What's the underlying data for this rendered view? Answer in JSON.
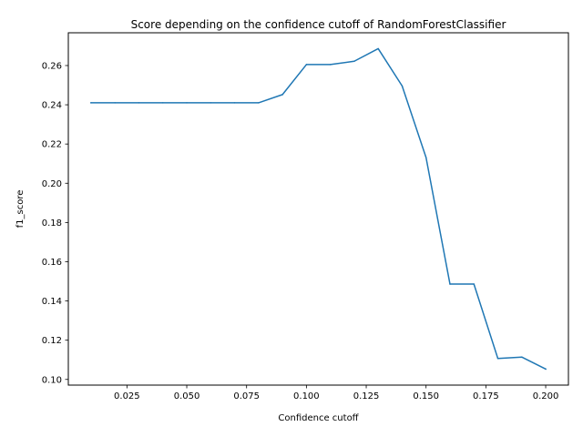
{
  "chart_data": {
    "type": "line",
    "title": "Score depending on the confidence cutoff of RandomForestClassifier",
    "xlabel": "Confidence cutoff",
    "ylabel": "f1_score",
    "xlim": [
      0.0005,
      0.2095
    ],
    "ylim": [
      0.0971,
      0.2767
    ],
    "xticks": [
      0.025,
      0.05,
      0.075,
      0.1,
      0.125,
      0.15,
      0.175,
      0.2
    ],
    "xtick_labels": [
      "0.025",
      "0.050",
      "0.075",
      "0.100",
      "0.125",
      "0.150",
      "0.175",
      "0.200"
    ],
    "yticks": [
      0.1,
      0.12,
      0.14,
      0.16,
      0.18,
      0.2,
      0.22,
      0.24,
      0.26
    ],
    "ytick_labels": [
      "0.10",
      "0.12",
      "0.14",
      "0.16",
      "0.18",
      "0.20",
      "0.22",
      "0.24",
      "0.26"
    ],
    "grid": false,
    "line_color": "#1f77b4",
    "series": [
      {
        "x": [
          0.01,
          0.02,
          0.03,
          0.04,
          0.05,
          0.06,
          0.07,
          0.08,
          0.09,
          0.1,
          0.11,
          0.12,
          0.13,
          0.14,
          0.15,
          0.16,
          0.17,
          0.18,
          0.19,
          0.2
        ],
        "y": [
          0.241,
          0.241,
          0.241,
          0.241,
          0.241,
          0.241,
          0.241,
          0.241,
          0.2452,
          0.2605,
          0.2605,
          0.2622,
          0.2686,
          0.2496,
          0.2131,
          0.1486,
          0.1486,
          0.1107,
          0.1114,
          0.1053
        ]
      }
    ]
  }
}
